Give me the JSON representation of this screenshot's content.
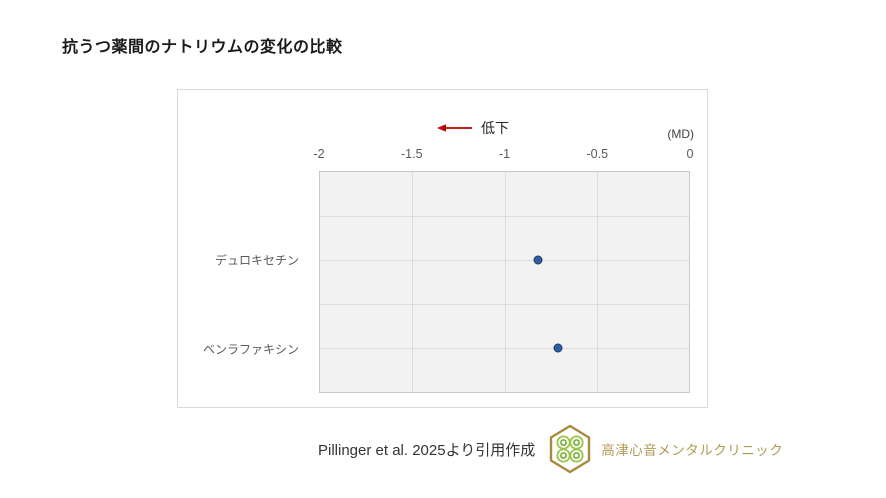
{
  "page": {
    "title": "抗うつ薬間のナトリウムの変化の比較"
  },
  "chart_data": {
    "type": "scatter",
    "title": "抗うつ薬間のナトリウムの変化の比較",
    "unit_label": "(MD)",
    "annotation": {
      "text": "低下",
      "arrow_direction": "left",
      "arrow_color": "#c00000"
    },
    "categories": [
      "デュロキセチン",
      "ベンラファキシン"
    ],
    "values": [
      -0.82,
      -0.71
    ],
    "xlim": [
      -2,
      0
    ],
    "x_ticks": [
      -2,
      -1.5,
      -1,
      -0.5,
      0
    ],
    "x_tick_labels": [
      "-2",
      "-1.5",
      "-1",
      "-0.5",
      "0"
    ],
    "axis_position": "top",
    "grid": true,
    "grid_rows": 5,
    "category_row_lines": [
      2,
      4
    ],
    "point_color": "#2e5fa3",
    "point_border_color": "#1f3864",
    "plot_bg_color": "#f2f2f2",
    "gridline_color": "#dcdcdc"
  },
  "footer": {
    "source": "Pillinger et al. 2025より引用作成",
    "clinic": "高津心音メンタルクリニック",
    "clinic_color": "#b39a55",
    "logo_gold": "#a8893d",
    "logo_green": "#8cb63e"
  }
}
